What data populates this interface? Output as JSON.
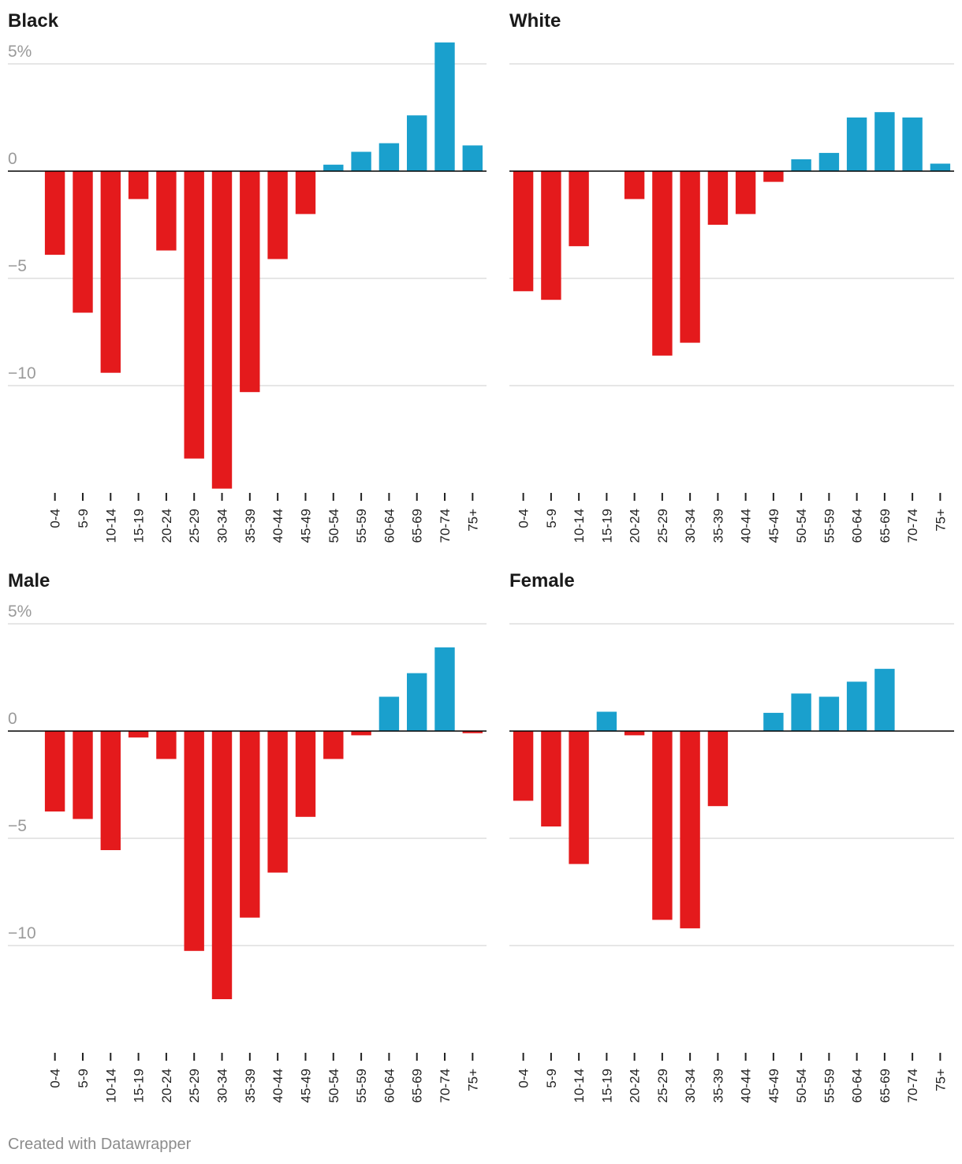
{
  "footer": {
    "credit": "Created with Datawrapper"
  },
  "colors": {
    "negative": "#e41a1c",
    "positive": "#1aa0cd",
    "grid": "#dddddd",
    "zero": "#000000"
  },
  "chart_data": [
    {
      "type": "bar",
      "title": "Black",
      "categories": [
        "0-4",
        "5-9",
        "10-14",
        "15-19",
        "20-24",
        "25-29",
        "30-34",
        "35-39",
        "40-44",
        "45-49",
        "50-54",
        "55-59",
        "60-64",
        "65-69",
        "70-74",
        "75+"
      ],
      "values": [
        -3.9,
        -6.6,
        -9.4,
        -1.3,
        -3.7,
        -13.4,
        -14.8,
        -10.3,
        -4.1,
        -2.0,
        0.3,
        0.9,
        1.3,
        2.6,
        6.0,
        1.2
      ],
      "ylim": [
        -15,
        6
      ],
      "yticks": [
        {
          "value": 5,
          "label": "5%"
        },
        {
          "value": 0,
          "label": "0"
        },
        {
          "value": -5,
          "label": "−5"
        },
        {
          "value": -10,
          "label": "−10"
        }
      ],
      "grid": true,
      "show_ytick_labels": true
    },
    {
      "type": "bar",
      "title": "White",
      "categories": [
        "0-4",
        "5-9",
        "10-14",
        "15-19",
        "20-24",
        "25-29",
        "30-34",
        "35-39",
        "40-44",
        "45-49",
        "50-54",
        "55-59",
        "60-64",
        "65-69",
        "70-74",
        "75+"
      ],
      "values": [
        -5.6,
        -6.0,
        -3.5,
        0,
        -1.3,
        -8.6,
        -8.0,
        -2.5,
        -2.0,
        -0.5,
        0.55,
        0.85,
        2.5,
        2.75,
        2.5,
        0.35
      ],
      "ylim": [
        -15,
        6
      ],
      "yticks": [
        {
          "value": 5,
          "label": "5%"
        },
        {
          "value": 0,
          "label": "0"
        },
        {
          "value": -5,
          "label": "−5"
        },
        {
          "value": -10,
          "label": "−10"
        }
      ],
      "grid": true,
      "show_ytick_labels": false
    },
    {
      "type": "bar",
      "title": "Male",
      "categories": [
        "0-4",
        "5-9",
        "10-14",
        "15-19",
        "20-24",
        "25-29",
        "30-34",
        "35-39",
        "40-44",
        "45-49",
        "50-54",
        "55-59",
        "60-64",
        "65-69",
        "70-74",
        "75+"
      ],
      "values": [
        -3.75,
        -4.1,
        -5.55,
        -0.3,
        -1.3,
        -10.25,
        -12.5,
        -8.7,
        -6.6,
        -4.0,
        -1.3,
        -0.2,
        1.6,
        2.7,
        3.9,
        -0.1
      ],
      "ylim": [
        -15,
        6
      ],
      "yticks": [
        {
          "value": 5,
          "label": "5%"
        },
        {
          "value": 0,
          "label": "0"
        },
        {
          "value": -5,
          "label": "−5"
        },
        {
          "value": -10,
          "label": "−10"
        }
      ],
      "grid": true,
      "show_ytick_labels": true
    },
    {
      "type": "bar",
      "title": "Female",
      "categories": [
        "0-4",
        "5-9",
        "10-14",
        "15-19",
        "20-24",
        "25-29",
        "30-34",
        "35-39",
        "40-44",
        "45-49",
        "50-54",
        "55-59",
        "60-64",
        "65-69",
        "70-74",
        "75+"
      ],
      "values": [
        -3.25,
        -4.45,
        -6.2,
        0.9,
        -0.2,
        -8.8,
        -9.2,
        -3.5,
        0,
        0.85,
        1.75,
        1.6,
        2.3,
        2.9,
        0,
        0
      ],
      "ylim": [
        -15,
        6
      ],
      "yticks": [
        {
          "value": 5,
          "label": "5%"
        },
        {
          "value": 0,
          "label": "0"
        },
        {
          "value": -5,
          "label": "−5"
        },
        {
          "value": -10,
          "label": "−10"
        }
      ],
      "grid": true,
      "show_ytick_labels": false
    }
  ]
}
